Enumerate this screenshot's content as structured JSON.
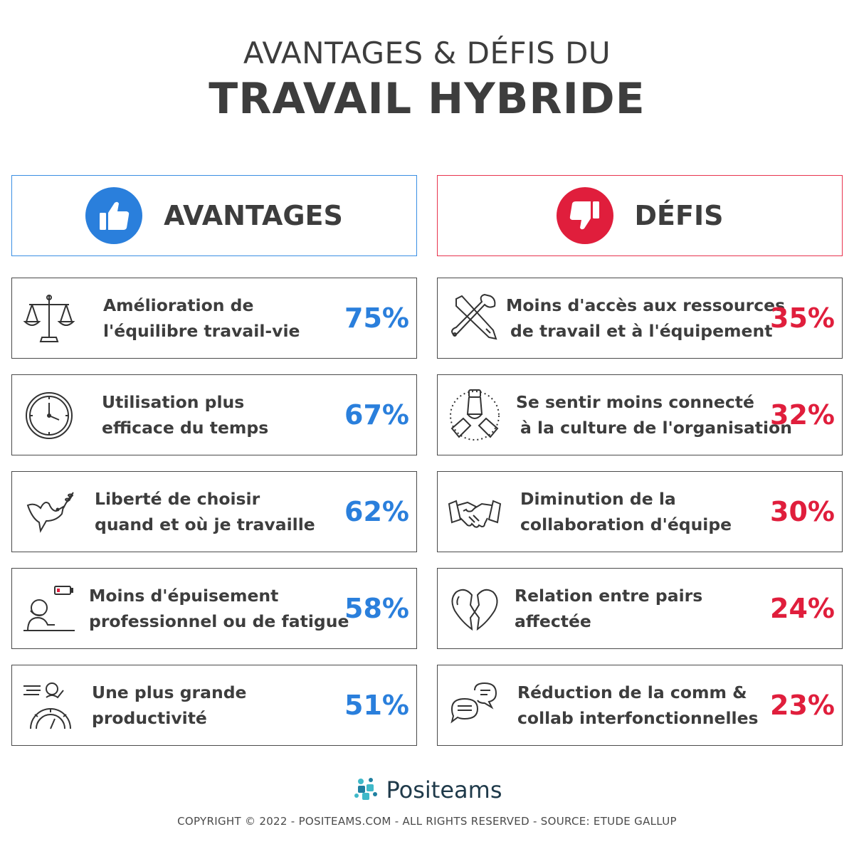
{
  "title": {
    "line1": "AVANTAGES & DÉFIS DU",
    "line2": "TRAVAIL HYBRIDE"
  },
  "colors": {
    "advantage": "#2a7fdc",
    "challenge": "#e01e3c",
    "text": "#3d3d3d"
  },
  "avantages": {
    "header": "AVANTAGES",
    "icon": "thumbs-up-icon",
    "items": [
      {
        "line1": "Amélioration de",
        "line2": "l'équilibre travail-vie",
        "value": "75%",
        "icon": "scales-icon"
      },
      {
        "line1": "Utilisation plus",
        "line2": "efficace du temps",
        "value": "67%",
        "icon": "clock-icon"
      },
      {
        "line1": "Liberté de choisir",
        "line2": "quand et où je travaille",
        "value": "62%",
        "icon": "dove-icon"
      },
      {
        "line1": "Moins d'épuisement",
        "line2": "professionnel ou de fatigue",
        "value": "58%",
        "icon": "tired-person-icon"
      },
      {
        "line1": "Une plus grande",
        "line2": "productivité",
        "value": "51%",
        "icon": "productivity-icon"
      }
    ]
  },
  "defis": {
    "header": "DÉFIS",
    "icon": "thumbs-down-icon",
    "items": [
      {
        "line1": "Moins d'accès aux ressources",
        "line2": "de travail et à l'équipement",
        "value": "35%",
        "icon": "tools-icon"
      },
      {
        "line1": "Se sentir moins connecté",
        "line2": "à la culture de l'organisation",
        "value": "32%",
        "icon": "team-hands-icon"
      },
      {
        "line1": "Diminution de la",
        "line2": "collaboration d'équipe",
        "value": "30%",
        "icon": "handshake-icon"
      },
      {
        "line1": "Relation entre pairs",
        "line2": "affectée",
        "value": "24%",
        "icon": "broken-heart-icon"
      },
      {
        "line1": "Réduction de la comm &",
        "line2": "collab interfonctionnelles",
        "value": "23%",
        "icon": "chat-bubbles-icon"
      }
    ]
  },
  "brand": {
    "name": "Positeams",
    "icon": "puzzle-logo-icon"
  },
  "footer": "COPYRIGHT © 2022 - POSITEAMS.COM - ALL RIGHTS RESERVED - SOURCE: ETUDE GALLUP"
}
